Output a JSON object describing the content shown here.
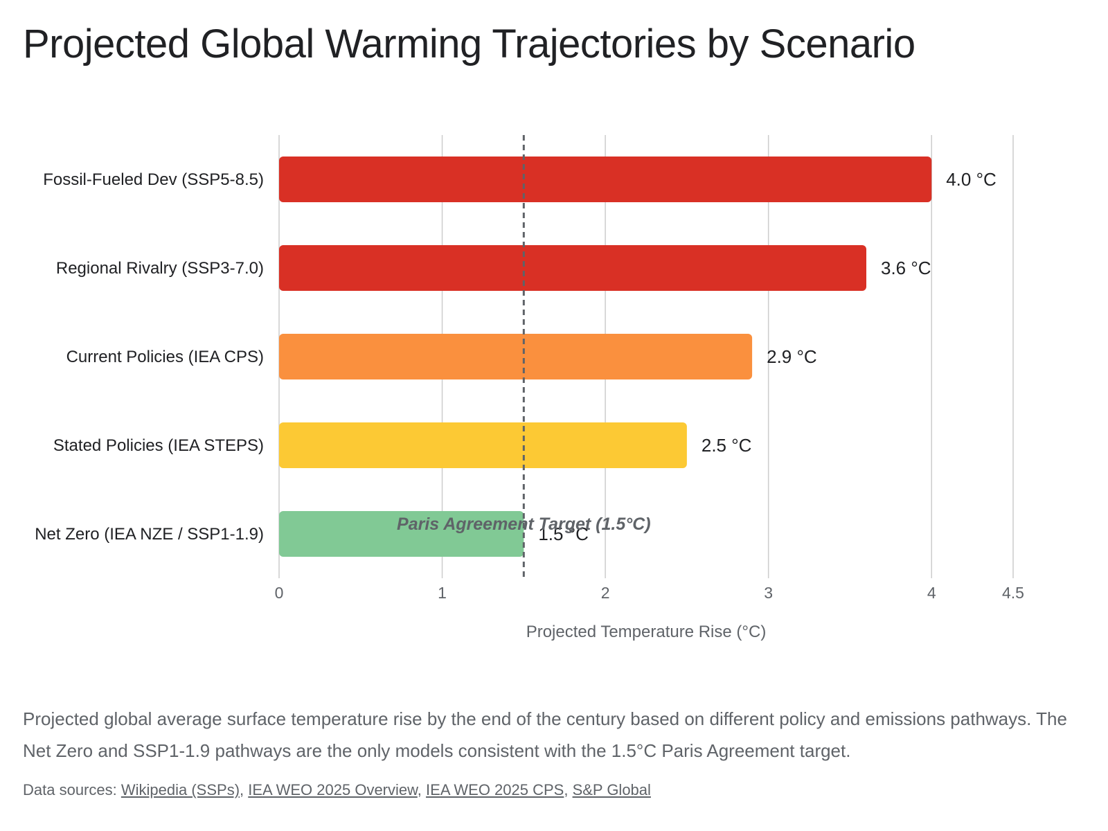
{
  "page": {
    "title": "Projected Global Warming Trajectories by Scenario",
    "caption": "Projected global average surface temperature rise by the end of the century based on different policy and emissions pathways. The Net Zero and SSP1-1.9 pathways are the only models consistent with the 1.5°C Paris Agreement target.",
    "sources_label": "Data sources:",
    "sources": [
      {
        "label": "Wikipedia (SSPs)"
      },
      {
        "label": "IEA WEO 2025 Overview"
      },
      {
        "label": "IEA WEO 2025 CPS"
      },
      {
        "label": "S&P Global"
      }
    ]
  },
  "chart_data": {
    "type": "bar",
    "orientation": "horizontal",
    "title": "Projected Global Warming Trajectories by Scenario",
    "xlabel": "Projected Temperature Rise (°C)",
    "ylabel": "",
    "xlim": [
      0,
      4.5
    ],
    "xticks": [
      0,
      1,
      2,
      3,
      4,
      4.5
    ],
    "xtick_labels": [
      "0",
      "1",
      "2",
      "3",
      "4",
      "4.5"
    ],
    "grid": true,
    "legend": "none",
    "categories": [
      "Fossil-Fueled Dev (SSP5-8.5)",
      "Regional Rivalry (SSP3-7.0)",
      "Current Policies (IEA CPS)",
      "Stated Policies (IEA STEPS)",
      "Net Zero (IEA NZE / SSP1-1.9)"
    ],
    "values": [
      4.0,
      3.6,
      2.9,
      2.5,
      1.5
    ],
    "value_labels": [
      "4.0 °C",
      "3.6 °C",
      "2.9 °C",
      "2.5 °C",
      "1.5 °C"
    ],
    "colors": [
      "#d93025",
      "#d93025",
      "#fa903e",
      "#fcc934",
      "#81c995"
    ],
    "reference_line": {
      "value": 1.5,
      "label": "Paris Agreement Target (1.5°C)",
      "style": "dashed",
      "color": "#5f6368"
    }
  }
}
